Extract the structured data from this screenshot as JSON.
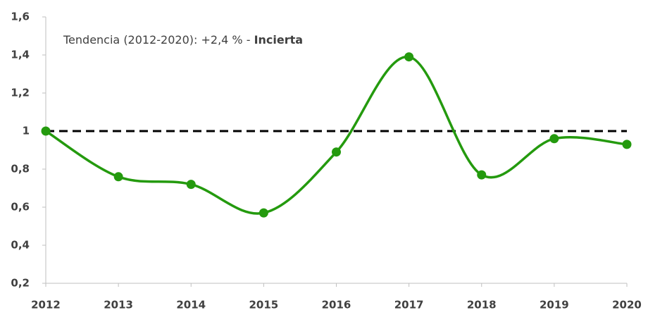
{
  "chart_data": {
    "type": "line",
    "annotation": "Tendencia (2012-2020): +2,4 % - ",
    "annotation_bold": "Incierta",
    "categories": [
      "2012",
      "2013",
      "2014",
      "2015",
      "2016",
      "2017",
      "2018",
      "2019",
      "2020"
    ],
    "series": [
      {
        "color": "#249a0e",
        "values": [
          1.0,
          0.76,
          0.72,
          0.57,
          0.89,
          1.39,
          0.77,
          0.96,
          0.93
        ]
      }
    ],
    "reference_line": 1,
    "reference_color": "#000000",
    "ylim": [
      0.2,
      1.6
    ],
    "yticks": [
      {
        "value": 0.2,
        "label": "0,2"
      },
      {
        "value": 0.4,
        "label": "0,4"
      },
      {
        "value": 0.6,
        "label": "0,6"
      },
      {
        "value": 0.8,
        "label": "0,8"
      },
      1,
      {
        "value": 1.2,
        "label": "1,2"
      },
      {
        "value": 1.4,
        "label": "1,4"
      },
      {
        "value": 1.6,
        "label": "1,6"
      }
    ],
    "grid": false
  }
}
